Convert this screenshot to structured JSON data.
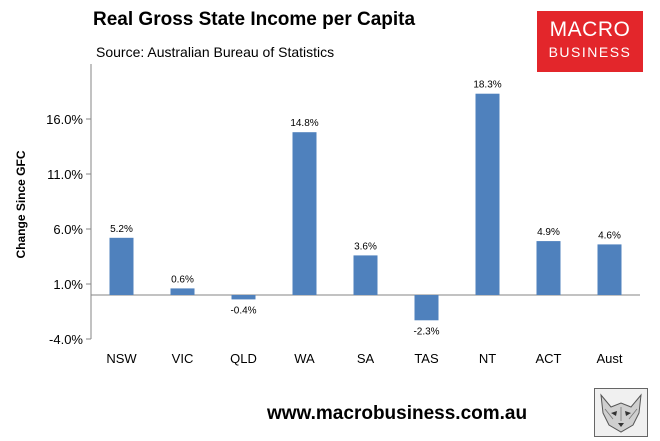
{
  "header": {
    "title": "Real Gross State Income per Capita",
    "source": "Source: Australian Bureau of Statistics"
  },
  "logo": {
    "line1": "MACRO",
    "line2": "BUSINESS"
  },
  "footer": {
    "url": "www.macrobusiness.com.au"
  },
  "colors": {
    "bar": "#4f81bd",
    "axis": "#868686",
    "brand": "#e3262b"
  },
  "chart_data": {
    "type": "bar",
    "title": "Real Gross State Income per Capita",
    "subtitle": "Source: Australian Bureau of Statistics",
    "xlabel": "",
    "ylabel": "Change Since GFC",
    "categories": [
      "NSW",
      "VIC",
      "QLD",
      "WA",
      "SA",
      "TAS",
      "NT",
      "ACT",
      "Aust"
    ],
    "values": [
      5.2,
      0.6,
      -0.4,
      14.8,
      3.6,
      -2.3,
      18.3,
      4.9,
      4.6
    ],
    "data_labels": [
      "5.2%",
      "0.6%",
      "-0.4%",
      "14.8%",
      "3.6%",
      "-2.3%",
      "18.3%",
      "4.9%",
      "4.6%"
    ],
    "yticks": [
      -4.0,
      1.0,
      6.0,
      11.0,
      16.0
    ],
    "ytick_labels": [
      "-4.0%",
      "1.0%",
      "6.0%",
      "11.0%",
      "16.0%"
    ],
    "ylim": [
      -4.0,
      21.0
    ],
    "grid": false,
    "legend": "none"
  }
}
